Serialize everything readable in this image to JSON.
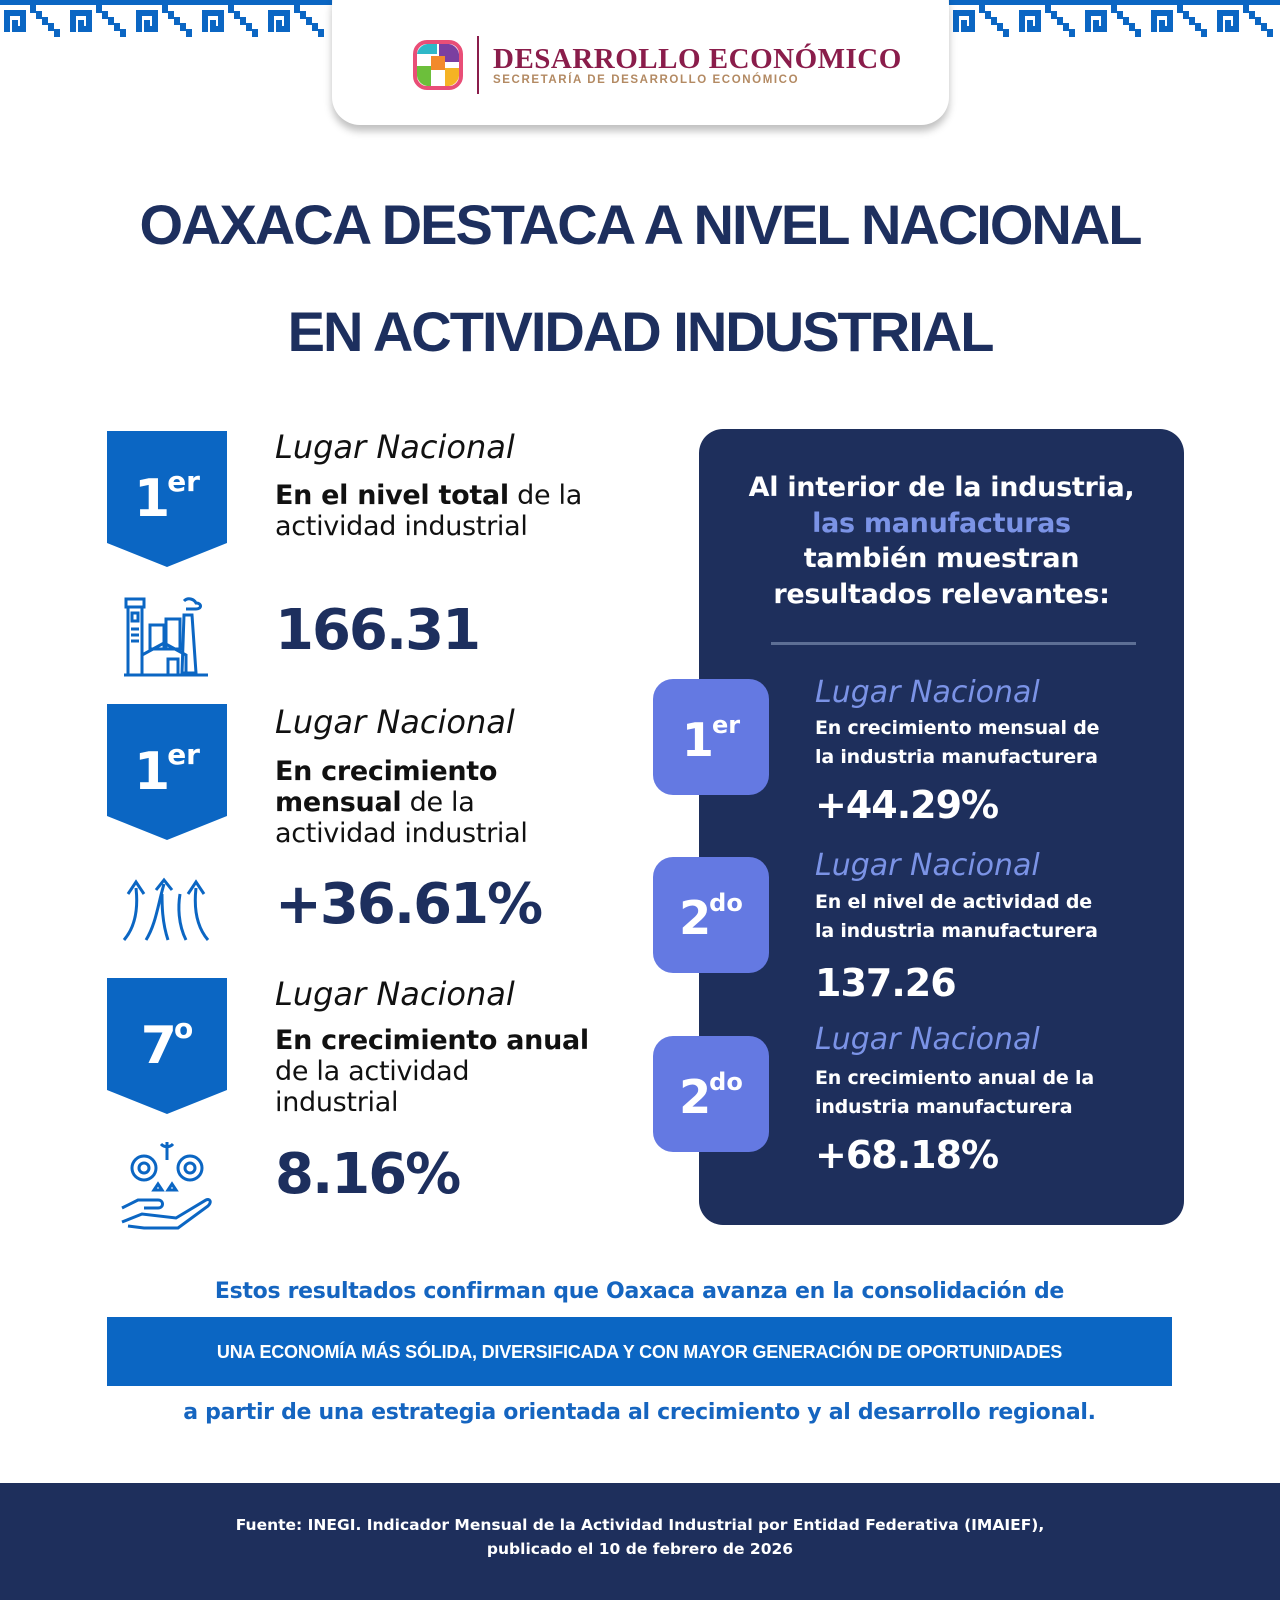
{
  "header": {
    "brand_title": "DESARROLLO ECONÓMICO",
    "brand_subtitle": "SECRETARÍA DE DESARROLLO ECONÓMICO",
    "brand_color": "#8a1d4b"
  },
  "title": {
    "line1": "OAXACA DESTACA A NIVEL NACIONAL",
    "line2": "EN ACTIVIDAD INDUSTRIAL"
  },
  "left_items": [
    {
      "rank": "1",
      "suffix": "er",
      "label": "Lugar Nacional",
      "bold": "En el nivel total",
      "rest": " de la actividad industrial",
      "value": "166.31",
      "icon": "factory-icon"
    },
    {
      "rank": "1",
      "suffix": "er",
      "label": "Lugar Nacional",
      "bold": "En crecimiento mensual",
      "rest": " de la actividad industrial",
      "value": "+36.61%",
      "icon": "arrows-up-icon"
    },
    {
      "rank": "7",
      "suffix": "o",
      "label": "Lugar Nacional",
      "bold": "En crecimiento anual",
      "rest": " de la actividad industrial",
      "value": "8.16%",
      "icon": "gears-hand-icon"
    }
  ],
  "panel": {
    "heading_1": "Al interior de la industria,",
    "heading_highlight": "las manufacturas",
    "heading_2": "también muestran",
    "heading_3": "resultados relevantes:",
    "items": [
      {
        "rank": "1",
        "suffix": "er",
        "label": "Lugar Nacional",
        "line1": "En crecimiento mensual de",
        "line2": "la industria manufacturera",
        "value": "+44.29%"
      },
      {
        "rank": "2",
        "suffix": "do",
        "label": "Lugar Nacional",
        "line1": "En el nivel de actividad de",
        "line2": "la industria manufacturera",
        "value": "137.26"
      },
      {
        "rank": "2",
        "suffix": "do",
        "label": "Lugar Nacional",
        "line1": "En crecimiento anual de la",
        "line2": "industria manufacturera",
        "value": "+68.18%"
      }
    ]
  },
  "conclusion": {
    "line1": "Estos resultados confirman que Oaxaca avanza en la consolidación de",
    "banner": "UNA ECONOMÍA MÁS SÓLIDA, DIVERSIFICADA Y CON MAYOR GENERACIÓN DE OPORTUNIDADES",
    "line3": "a partir de una estrategia orientada al crecimiento y al desarrollo regional."
  },
  "footer": {
    "line1": "Fuente: INEGI. Indicador Mensual de la Actividad Industrial por Entidad Federativa (IMAIEF),",
    "line2": "publicado el 10 de febrero de 2026"
  },
  "colors": {
    "navy": "#1e2f5c",
    "blue": "#0b66c3",
    "periwinkle": "#6479e2",
    "highlight": "#7b93e6"
  }
}
